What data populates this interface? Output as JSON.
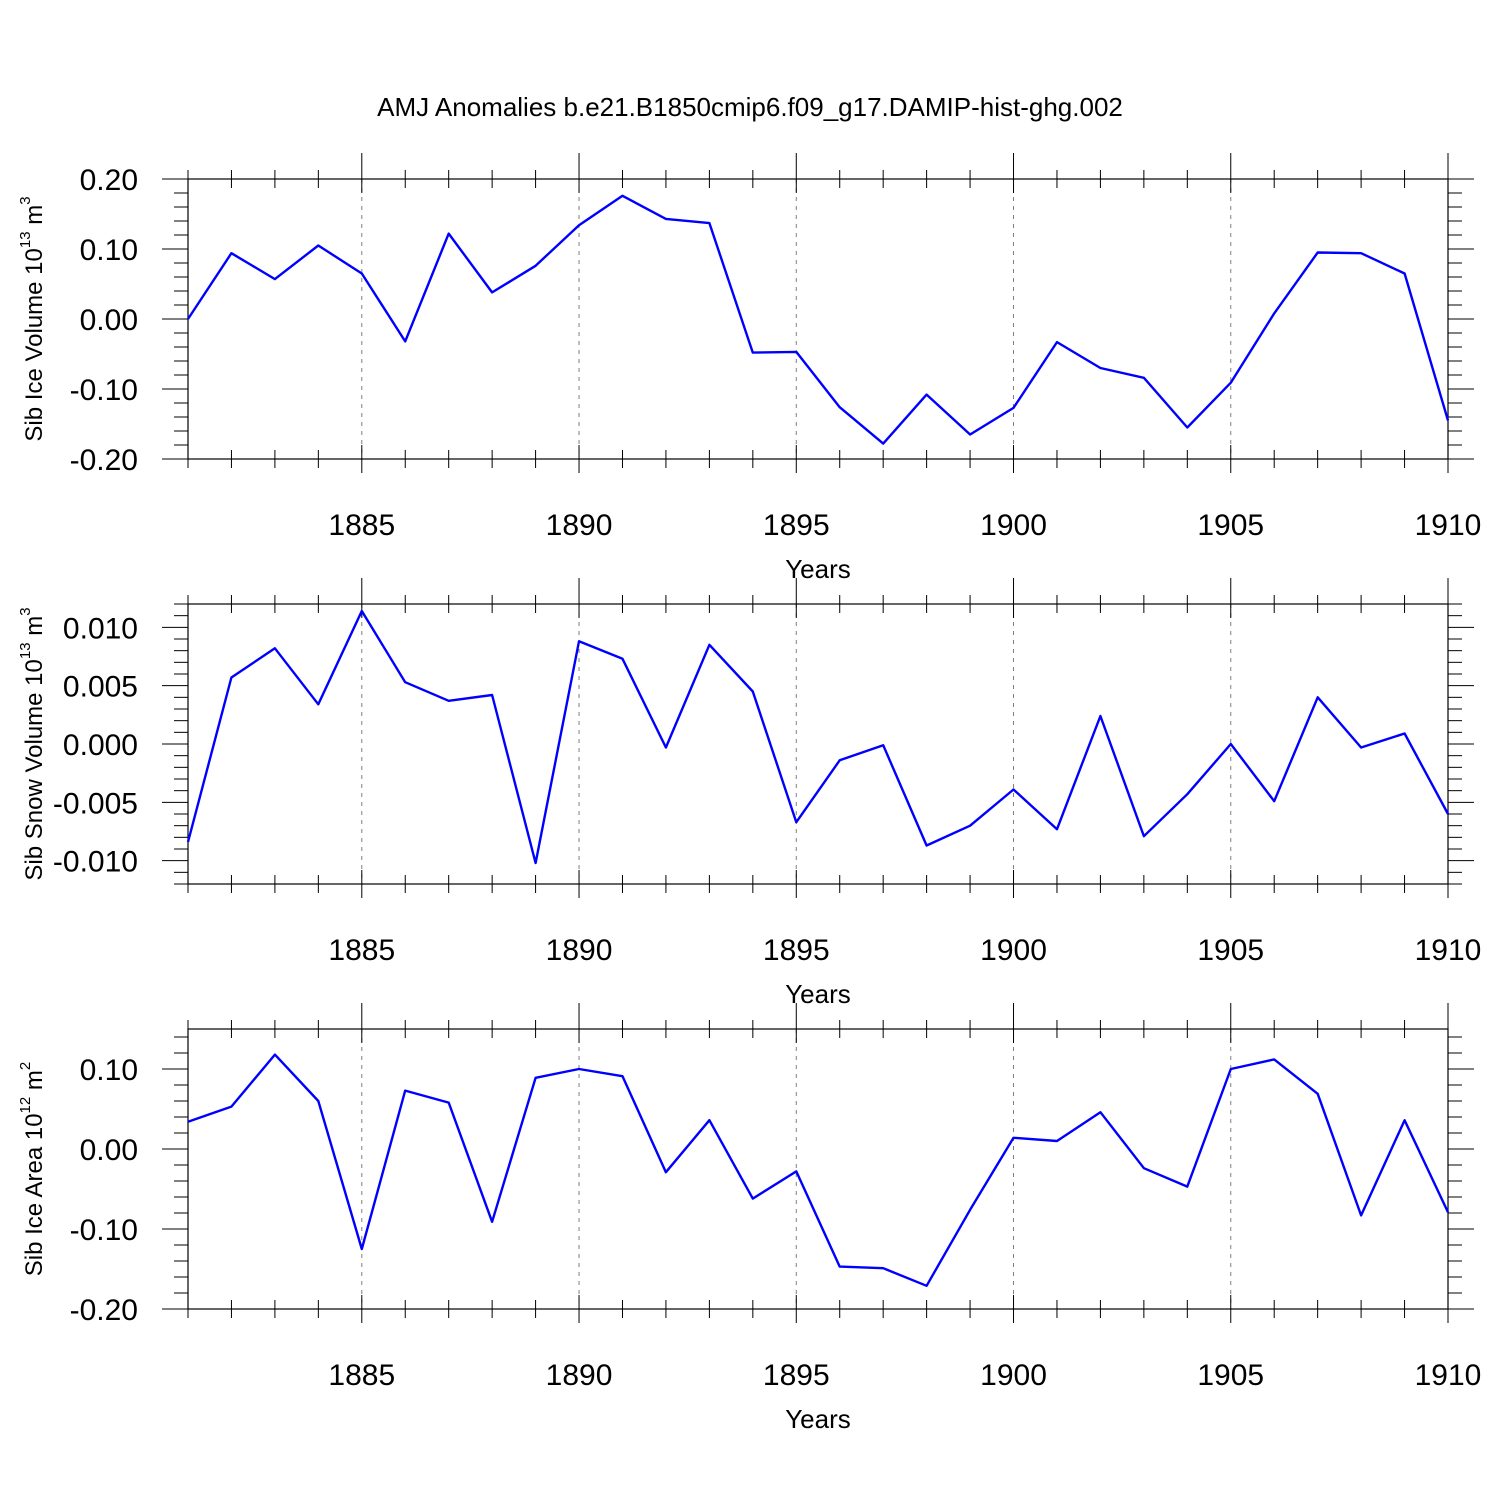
{
  "title": "AMJ Anomalies b.e21.B1850cmip6.f09_g17.DAMIP-hist-ghg.002",
  "colors": {
    "line": "#0000ff",
    "grid": "#7f7f7f",
    "axis": "#000000"
  },
  "chart_data": [
    {
      "type": "line",
      "ylabel": {
        "main": "Sib Ice Volume 10",
        "exp": "13",
        "unit": " m",
        "unitexp": "3"
      },
      "xlabel": "Years",
      "xlim": [
        1881,
        1910
      ],
      "ylim": [
        -0.2,
        0.2
      ],
      "yticks": [
        0.2,
        0.1,
        0.0,
        -0.1,
        -0.2
      ],
      "ytick_labels": [
        "0.20",
        "0.10",
        "0.00",
        "-0.10",
        "-0.20"
      ],
      "xticks": [
        1885,
        1890,
        1895,
        1900,
        1905,
        1910
      ],
      "xtick_labels": [
        "1885",
        "1890",
        "1895",
        "1900",
        "1905",
        "1910"
      ],
      "x": [
        1881,
        1882,
        1883,
        1884,
        1885,
        1886,
        1887,
        1888,
        1889,
        1890,
        1891,
        1892,
        1893,
        1894,
        1895,
        1896,
        1897,
        1898,
        1899,
        1900,
        1901,
        1902,
        1903,
        1904,
        1905,
        1906,
        1907,
        1908,
        1909,
        1910
      ],
      "series": [
        {
          "values": [
            0.0,
            0.094,
            0.057,
            0.105,
            0.065,
            -0.032,
            0.122,
            0.038,
            0.076,
            0.134,
            0.176,
            0.143,
            0.137,
            -0.048,
            -0.047,
            -0.126,
            -0.178,
            -0.108,
            -0.165,
            -0.127,
            -0.033,
            -0.07,
            -0.084,
            -0.155,
            -0.091,
            0.008,
            0.095,
            0.094,
            0.065,
            -0.145
          ]
        }
      ],
      "grid": "dashed vertical at x ticks"
    },
    {
      "type": "line",
      "ylabel": {
        "main": "Sib Snow Volume 10",
        "exp": "13",
        "unit": " m",
        "unitexp": "3"
      },
      "xlabel": "Years",
      "xlim": [
        1881,
        1910
      ],
      "ylim": [
        -0.012,
        0.012
      ],
      "yticks": [
        0.01,
        0.005,
        0.0,
        -0.005,
        -0.01
      ],
      "ytick_labels": [
        "0.010",
        "0.005",
        "0.000",
        "-0.005",
        "-0.010"
      ],
      "xticks": [
        1885,
        1890,
        1895,
        1900,
        1905,
        1910
      ],
      "xtick_labels": [
        "1885",
        "1890",
        "1895",
        "1900",
        "1905",
        "1910"
      ],
      "x": [
        1881,
        1882,
        1883,
        1884,
        1885,
        1886,
        1887,
        1888,
        1889,
        1890,
        1891,
        1892,
        1893,
        1894,
        1895,
        1896,
        1897,
        1898,
        1899,
        1900,
        1901,
        1902,
        1903,
        1904,
        1905,
        1906,
        1907,
        1908,
        1909,
        1910
      ],
      "series": [
        {
          "values": [
            -0.0084,
            0.0057,
            0.0082,
            0.0034,
            0.0114,
            0.0053,
            0.0037,
            0.0042,
            -0.0102,
            0.0088,
            0.0073,
            -0.0003,
            0.0085,
            0.0045,
            -0.0067,
            -0.0014,
            -0.0001,
            -0.0087,
            -0.007,
            -0.0039,
            -0.0073,
            0.0024,
            -0.0079,
            -0.0043,
            0.0,
            -0.0049,
            0.004,
            -0.0003,
            0.0009,
            -0.006
          ]
        }
      ],
      "grid": "dashed vertical at x ticks"
    },
    {
      "type": "line",
      "ylabel": {
        "main": "Sib Ice Area 10",
        "exp": "12",
        "unit": " m",
        "unitexp": "2"
      },
      "xlabel": "Years",
      "xlim": [
        1881,
        1910
      ],
      "ylim": [
        -0.2,
        0.15
      ],
      "yticks": [
        0.1,
        0.0,
        -0.1,
        -0.2
      ],
      "ytick_labels": [
        "0.10",
        "0.00",
        "-0.10",
        "-0.20"
      ],
      "xticks": [
        1885,
        1890,
        1895,
        1900,
        1905,
        1910
      ],
      "xtick_labels": [
        "1885",
        "1890",
        "1895",
        "1900",
        "1905",
        "1910"
      ],
      "x": [
        1881,
        1882,
        1883,
        1884,
        1885,
        1886,
        1887,
        1888,
        1889,
        1890,
        1891,
        1892,
        1893,
        1894,
        1895,
        1896,
        1897,
        1898,
        1899,
        1900,
        1901,
        1902,
        1903,
        1904,
        1905,
        1906,
        1907,
        1908,
        1909,
        1910
      ],
      "series": [
        {
          "values": [
            0.034,
            0.053,
            0.118,
            0.06,
            -0.125,
            0.073,
            0.058,
            -0.091,
            0.089,
            0.1,
            0.091,
            -0.029,
            0.036,
            -0.062,
            -0.028,
            -0.147,
            -0.149,
            -0.171,
            -0.076,
            0.014,
            0.01,
            0.046,
            -0.024,
            -0.047,
            0.1,
            0.112,
            0.069,
            -0.083,
            0.036,
            -0.079
          ]
        }
      ],
      "grid": "dashed vertical at x ticks"
    }
  ]
}
